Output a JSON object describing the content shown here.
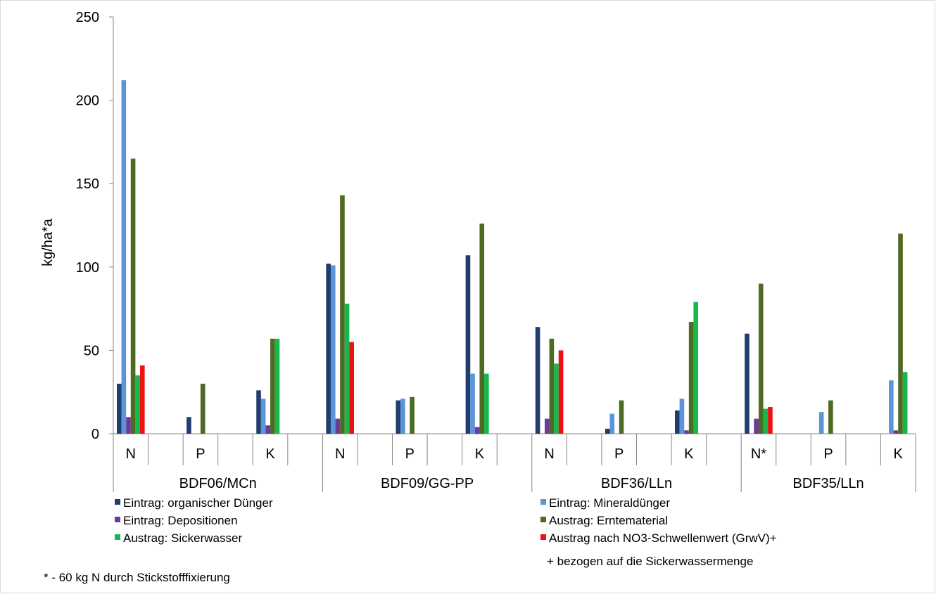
{
  "chart_data": {
    "type": "bar",
    "ylabel": "kg/ha*a",
    "ylim": [
      0,
      250
    ],
    "yticks": [
      0,
      50,
      100,
      150,
      200,
      250
    ],
    "grid": false,
    "legend_placement": "bottom",
    "groups": [
      "BDF06/MCn",
      "BDF09/GG-PP",
      "BDF36/LLn",
      "BDF35/LLn"
    ],
    "categories": [
      "N",
      "",
      "P",
      "",
      "K",
      "",
      "N",
      "",
      "P",
      "",
      "K",
      "",
      "N",
      "",
      "P",
      "",
      "K",
      "",
      "N*",
      "",
      "P",
      "",
      "K"
    ],
    "series": [
      {
        "name": "Eintrag: organischer Dünger",
        "color": "#1f3d6e",
        "values": [
          30,
          null,
          10,
          null,
          26,
          null,
          102,
          null,
          20,
          null,
          107,
          null,
          64,
          null,
          3,
          null,
          14,
          null,
          60,
          null,
          null,
          null,
          null
        ]
      },
      {
        "name": "Eintrag: Mineraldünger",
        "color": "#5b94d9",
        "values": [
          212,
          null,
          null,
          null,
          21,
          null,
          101,
          null,
          21,
          null,
          36,
          null,
          null,
          null,
          12,
          null,
          21,
          null,
          null,
          null,
          13,
          null,
          32
        ]
      },
      {
        "name": "Eintrag: Depositionen",
        "color": "#6b3a9a",
        "values": [
          10,
          null,
          null,
          null,
          5,
          null,
          9,
          null,
          null,
          null,
          4,
          null,
          9,
          null,
          null,
          null,
          2,
          null,
          9,
          null,
          null,
          null,
          2
        ]
      },
      {
        "name": "Austrag: Erntematerial",
        "color": "#4e6a23",
        "values": [
          165,
          null,
          30,
          null,
          57,
          null,
          143,
          null,
          22,
          null,
          126,
          null,
          57,
          null,
          20,
          null,
          67,
          null,
          90,
          null,
          20,
          null,
          120
        ]
      },
      {
        "name": "Austrag: Sickerwasser",
        "color": "#16b84c",
        "values": [
          35,
          null,
          null,
          null,
          57,
          null,
          78,
          null,
          null,
          null,
          36,
          null,
          42,
          null,
          null,
          null,
          79,
          null,
          15,
          null,
          null,
          null,
          37
        ]
      },
      {
        "name": "Austrag nach NO3-Schwellenwert (GrwV)+",
        "color": "#ee1111",
        "values": [
          41,
          null,
          null,
          null,
          null,
          null,
          55,
          null,
          null,
          null,
          null,
          null,
          50,
          null,
          null,
          null,
          null,
          null,
          16,
          null,
          null,
          null,
          null
        ]
      }
    ],
    "annotations": [
      "+ bezogen auf die Sickerwassermenge",
      "* - 60 kg N durch Stickstofffixierung"
    ]
  }
}
